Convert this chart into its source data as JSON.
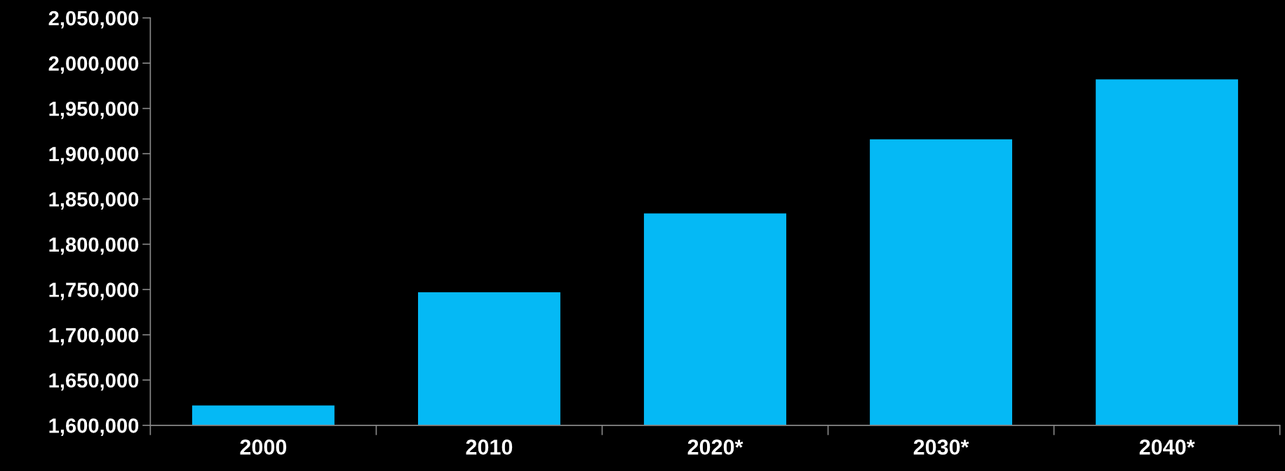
{
  "chart_data": {
    "type": "bar",
    "categories": [
      "2000",
      "2010",
      "2020*",
      "2030*",
      "2040*"
    ],
    "values": [
      1622000,
      1747000,
      1834000,
      1916000,
      1982000
    ],
    "color": "#05b9f5",
    "ylim": [
      1600000,
      2050000
    ],
    "yticks": [
      {
        "value": 1600000,
        "label": "1,600,000"
      },
      {
        "value": 1650000,
        "label": "1,650,000"
      },
      {
        "value": 1700000,
        "label": "1,700,000"
      },
      {
        "value": 1750000,
        "label": "1,750,000"
      },
      {
        "value": 1800000,
        "label": "1,800,000"
      },
      {
        "value": 1850000,
        "label": "1,850,000"
      },
      {
        "value": 1900000,
        "label": "1,900,000"
      },
      {
        "value": 1950000,
        "label": "1,950,000"
      },
      {
        "value": 2000000,
        "label": "2,000,000"
      },
      {
        "value": 2050000,
        "label": "2,050,000"
      }
    ],
    "grid": false
  }
}
